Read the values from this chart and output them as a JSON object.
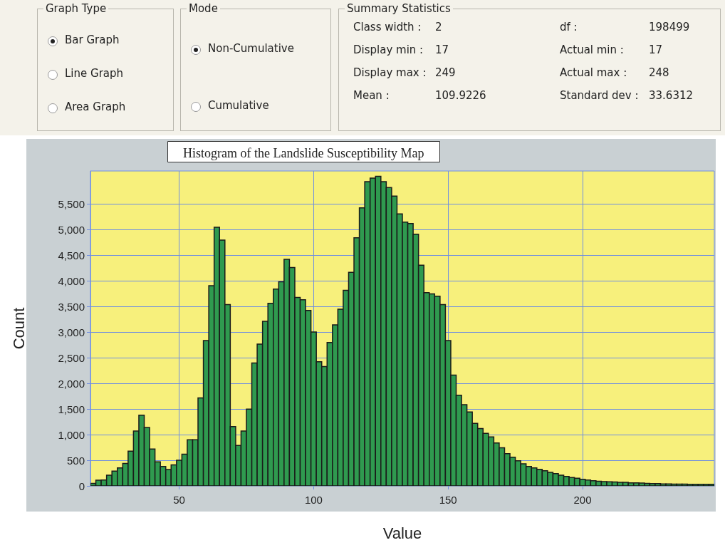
{
  "chart_data": {
    "type": "histogram",
    "title": "Histogram of the Landslide Susceptibility Map",
    "xlabel": "Value",
    "ylabel": "Count",
    "annotations": [
      "Graph Type",
      "Bar Graph",
      "Line Graph",
      "Area Graph",
      "Mode",
      "Non-Cumulative",
      "Cumulative",
      "Summary Statistics",
      "Class width :",
      "2",
      "df :",
      "198499",
      "Display min :",
      "17",
      "Actual min :",
      "17",
      "Display max :",
      "249",
      "Actual max :",
      "248",
      "Mean :",
      "109.9226",
      "Standard dev :",
      "33.6312"
    ],
    "bins": [
      17,
      19,
      21,
      23,
      25,
      27,
      29,
      31,
      33,
      35,
      37,
      39,
      41,
      43,
      45,
      47,
      49,
      51,
      53,
      55,
      57,
      59,
      61,
      63,
      65,
      67,
      69,
      71,
      73,
      75,
      77,
      79,
      81,
      83,
      85,
      87,
      89,
      91,
      93,
      95,
      97,
      99,
      101,
      103,
      105,
      107,
      109,
      111,
      113,
      115,
      117,
      119,
      121,
      123,
      125,
      127,
      129,
      131,
      133,
      135,
      137,
      139,
      141,
      143,
      145,
      147,
      149,
      151,
      153,
      155,
      157,
      159,
      161,
      163,
      165,
      167,
      169,
      171,
      173,
      175,
      177,
      179,
      181,
      183,
      185,
      187,
      189,
      191,
      193,
      195,
      197,
      199,
      201,
      203,
      205,
      207,
      209,
      211,
      213,
      215,
      217,
      219,
      221,
      223,
      225,
      227,
      229,
      231,
      233,
      235,
      237,
      239,
      241,
      243,
      245,
      247,
      249
    ],
    "values": [
      50,
      110,
      115,
      210,
      290,
      350,
      440,
      680,
      1070,
      1380,
      1140,
      720,
      470,
      380,
      320,
      410,
      500,
      620,
      900,
      900,
      1720,
      2840,
      3910,
      5050,
      4800,
      3540,
      1160,
      790,
      1070,
      1500,
      2400,
      2770,
      3215,
      3565,
      3845,
      3985,
      4425,
      4265,
      3680,
      3635,
      3425,
      3005,
      2425,
      2330,
      2800,
      3145,
      3450,
      3820,
      4170,
      4845,
      5430,
      5940,
      6010,
      6045,
      5940,
      5825,
      5660,
      5310,
      5150,
      5125,
      4915,
      4310,
      3775,
      3750,
      3705,
      3540,
      2840,
      2165,
      1770,
      1585,
      1445,
      1220,
      1120,
      1025,
      955,
      840,
      745,
      630,
      560,
      490,
      430,
      380,
      350,
      325,
      295,
      265,
      240,
      210,
      185,
      165,
      150,
      130,
      115,
      100,
      90,
      85,
      80,
      75,
      70,
      70,
      60,
      60,
      55,
      50,
      45,
      45,
      40,
      40,
      35,
      35,
      35,
      30,
      30,
      30,
      30,
      30
    ],
    "color": "#2f9a4f",
    "xlim": [
      17,
      249
    ],
    "xticks": [
      50,
      100,
      150,
      200
    ],
    "ylim": [
      0,
      6150
    ],
    "yticks": [
      0,
      500,
      {
        "value": 1000,
        "label": "1,000"
      },
      {
        "value": 1500,
        "label": "1,500"
      },
      {
        "value": 2000,
        "label": "2,000"
      },
      {
        "value": 2500,
        "label": "2,500"
      },
      {
        "value": 3000,
        "label": "3,000"
      },
      {
        "value": 3500,
        "label": "3,500"
      },
      {
        "value": 4000,
        "label": "4,000"
      },
      {
        "value": 4500,
        "label": "4,500"
      },
      {
        "value": 5000,
        "label": "5,000"
      },
      {
        "value": 5500,
        "label": "5,500"
      }
    ],
    "grid": true
  }
}
